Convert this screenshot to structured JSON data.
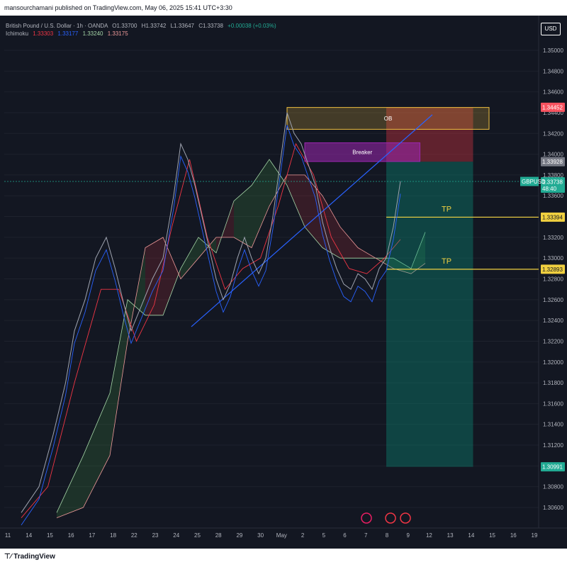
{
  "header": {
    "published": "mansourchamani published on TradingView.com, May 06, 2025 15:41 UTC+3:30"
  },
  "footer": {
    "brand": "TradingView"
  },
  "currency_button": "USD",
  "legend": {
    "symbol_line": "British Pound / U.S. Dollar · 1h · OANDA",
    "ohlc": {
      "O": "O1.33700",
      "H": "H1.33742",
      "L": "L1.33647",
      "C": "C1.33738",
      "change": "+0.00038 (+0.03%)"
    },
    "ichimoku": {
      "label": "Ichimoku",
      "values": [
        "1.33303",
        "1.33177",
        "1.33240",
        "1.33175"
      ],
      "colors": [
        "#f23645",
        "#2962ff",
        "#a5d6a7",
        "#ef9a9a"
      ]
    }
  },
  "chart_data": {
    "type": "line",
    "symbol": "GBPUSD",
    "y_axis": {
      "ticks": [
        1.35,
        1.348,
        1.346,
        1.344,
        1.342,
        1.34,
        1.338,
        1.336,
        1.334,
        1.332,
        1.33,
        1.328,
        1.326,
        1.324,
        1.322,
        1.32,
        1.318,
        1.316,
        1.314,
        1.312,
        1.31,
        1.308,
        1.306
      ],
      "tick_labels": [
        "1.35000",
        "1.34800",
        "1.34600",
        "1.34400",
        "1.34200",
        "1.34000",
        "1.33800",
        "1.33600",
        "1.33400",
        "1.33200",
        "1.33000",
        "1.32800",
        "1.32600",
        "1.32400",
        "1.32200",
        "1.32000",
        "1.31800",
        "1.31600",
        "1.31400",
        "1.31200",
        "1.31000",
        "1.30800",
        "1.30600"
      ],
      "range": [
        1.30503,
        1.35133
      ]
    },
    "x_axis": {
      "tick_labels": [
        "11",
        "14",
        "15",
        "16",
        "17",
        "18",
        "22",
        "23",
        "24",
        "25",
        "28",
        "29",
        "30",
        "May",
        "2",
        "5",
        "6",
        "7",
        "8",
        "9",
        "12",
        "13",
        "14",
        "15",
        "16",
        "19"
      ]
    },
    "price_series": [
      [
        0,
        1.3055
      ],
      [
        10,
        1.308
      ],
      [
        18,
        1.313
      ],
      [
        25,
        1.318
      ],
      [
        30,
        1.323
      ],
      [
        36,
        1.326
      ],
      [
        42,
        1.33
      ],
      [
        48,
        1.332
      ],
      [
        53,
        1.329
      ],
      [
        58,
        1.3255
      ],
      [
        62,
        1.323
      ],
      [
        68,
        1.3255
      ],
      [
        74,
        1.328
      ],
      [
        80,
        1.33
      ],
      [
        86,
        1.336
      ],
      [
        90,
        1.341
      ],
      [
        94,
        1.3395
      ],
      [
        98,
        1.337
      ],
      [
        102,
        1.334
      ],
      [
        106,
        1.331
      ],
      [
        110,
        1.328
      ],
      [
        114,
        1.326
      ],
      [
        118,
        1.3275
      ],
      [
        122,
        1.33
      ],
      [
        126,
        1.332
      ],
      [
        130,
        1.33
      ],
      [
        134,
        1.3285
      ],
      [
        138,
        1.33
      ],
      [
        142,
        1.334
      ],
      [
        146,
        1.339
      ],
      [
        150,
        1.344
      ],
      [
        154,
        1.342
      ],
      [
        158,
        1.341
      ],
      [
        162,
        1.339
      ],
      [
        166,
        1.337
      ],
      [
        170,
        1.3335
      ],
      [
        174,
        1.331
      ],
      [
        178,
        1.329
      ],
      [
        182,
        1.3275
      ],
      [
        186,
        1.327
      ],
      [
        190,
        1.3285
      ],
      [
        194,
        1.328
      ],
      [
        198,
        1.327
      ],
      [
        202,
        1.329
      ],
      [
        206,
        1.33
      ],
      [
        210,
        1.333
      ],
      [
        214,
        1.3374
      ]
    ],
    "kijun_series": [
      [
        0,
        1.305
      ],
      [
        15,
        1.308
      ],
      [
        30,
        1.318
      ],
      [
        45,
        1.327
      ],
      [
        55,
        1.327
      ],
      [
        65,
        1.322
      ],
      [
        75,
        1.3255
      ],
      [
        85,
        1.333
      ],
      [
        95,
        1.3395
      ],
      [
        105,
        1.332
      ],
      [
        115,
        1.327
      ],
      [
        125,
        1.329
      ],
      [
        135,
        1.33
      ],
      [
        145,
        1.335
      ],
      [
        155,
        1.341
      ],
      [
        165,
        1.338
      ],
      [
        175,
        1.332
      ],
      [
        185,
        1.329
      ],
      [
        195,
        1.3285
      ],
      [
        205,
        1.33
      ],
      [
        214,
        1.3318
      ]
    ],
    "cloud_a": [
      [
        20,
        1.3055
      ],
      [
        35,
        1.311
      ],
      [
        50,
        1.317
      ],
      [
        60,
        1.326
      ],
      [
        70,
        1.3245
      ],
      [
        80,
        1.3245
      ],
      [
        90,
        1.329
      ],
      [
        100,
        1.332
      ],
      [
        110,
        1.3305
      ],
      [
        120,
        1.3355
      ],
      [
        130,
        1.337
      ],
      [
        140,
        1.3395
      ],
      [
        150,
        1.337
      ],
      [
        160,
        1.333
      ],
      [
        170,
        1.331
      ],
      [
        180,
        1.33
      ],
      [
        190,
        1.33
      ],
      [
        200,
        1.33
      ],
      [
        210,
        1.33
      ],
      [
        220,
        1.329
      ],
      [
        228,
        1.3325
      ]
    ],
    "cloud_b": [
      [
        20,
        1.305
      ],
      [
        35,
        1.306
      ],
      [
        50,
        1.311
      ],
      [
        60,
        1.322
      ],
      [
        70,
        1.331
      ],
      [
        80,
        1.332
      ],
      [
        90,
        1.328
      ],
      [
        100,
        1.33
      ],
      [
        110,
        1.332
      ],
      [
        120,
        1.332
      ],
      [
        130,
        1.331
      ],
      [
        140,
        1.335
      ],
      [
        150,
        1.338
      ],
      [
        160,
        1.338
      ],
      [
        170,
        1.336
      ],
      [
        180,
        1.333
      ],
      [
        190,
        1.331
      ],
      [
        200,
        1.33
      ],
      [
        210,
        1.329
      ],
      [
        220,
        1.3285
      ],
      [
        228,
        1.3295
      ]
    ],
    "trendline": {
      "from": [
        96,
        1.3234
      ],
      "to": [
        232,
        1.3438
      ]
    },
    "zones": [
      {
        "label": "OB",
        "top": 1.3445,
        "bottom": 1.3424,
        "x1": 150,
        "x2": 264,
        "color": "#f0c040"
      },
      {
        "label": "Breaker",
        "top": 1.3411,
        "bottom": 1.3393,
        "x1": 160,
        "x2": 225,
        "color": "#9c27b0"
      }
    ],
    "position": {
      "entry": 1.33928,
      "stop": 1.34452,
      "target": 1.30991,
      "x1": 206,
      "x2": 255
    },
    "tp_lines": [
      {
        "label": "TP",
        "price": 1.33394,
        "x1": 206
      },
      {
        "label": "TP",
        "price": 1.32893,
        "x1": 206
      }
    ],
    "price_labels": [
      {
        "text": "1.34452",
        "price": 1.34452,
        "bg": "#f7525f",
        "fg": "#ffffff"
      },
      {
        "text": "1.33928",
        "price": 1.33928,
        "bg": "#787b86",
        "fg": "#ffffff"
      },
      {
        "text": "1.33738",
        "sub": "48:40",
        "price": 1.33738,
        "bg": "#22ab94",
        "fg": "#ffffff"
      },
      {
        "text": "1.33394",
        "price": 1.33394,
        "bg": "#f0d040",
        "fg": "#131722"
      },
      {
        "text": "1.32893",
        "price": 1.32893,
        "bg": "#f0d040",
        "fg": "#131722"
      },
      {
        "text": "1.30991",
        "price": 1.30991,
        "bg": "#22ab94",
        "fg": "#ffffff"
      }
    ],
    "last_price_tag": "GBPUSD"
  }
}
